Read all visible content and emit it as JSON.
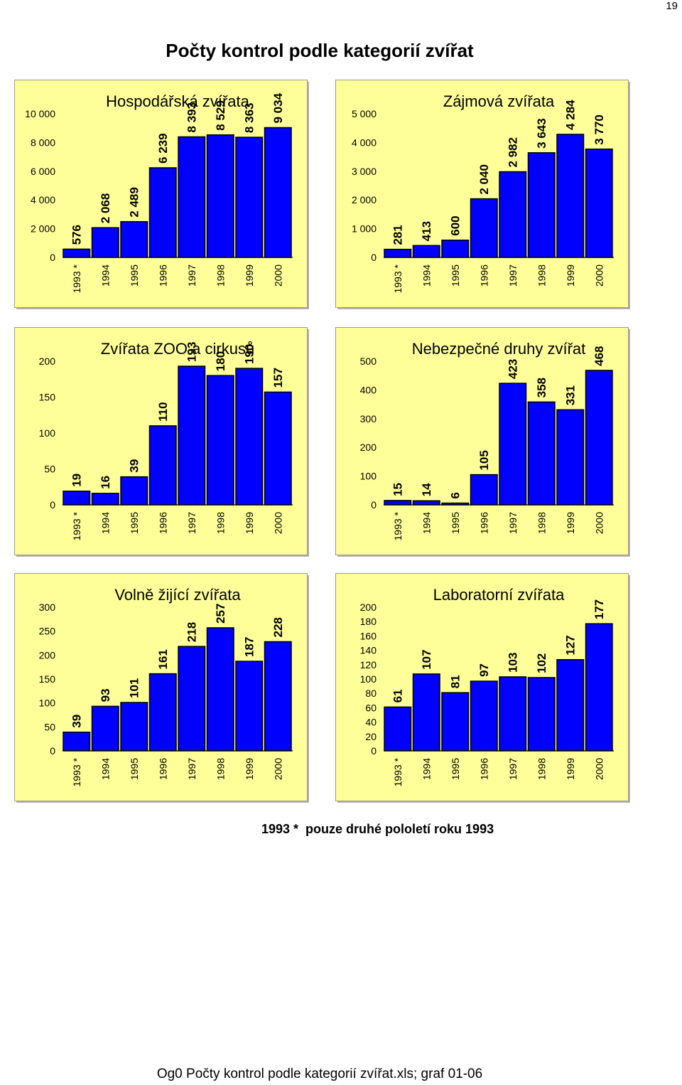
{
  "page": {
    "number": "19",
    "title": "Počty kontrol podle kategorií zvířat",
    "footnote": "1993 *  pouze druhé pololetí roku 1993",
    "footer": "Og0 Počty kontrol podle kategorií zvířat.xls; graf 01-06"
  },
  "colors": {
    "panel_bg": "#ffff99",
    "bar_fill": "#0000ff",
    "bar_stroke": "#000000"
  },
  "chart_data": [
    {
      "type": "bar",
      "title": "Hospodářská zvířata",
      "categories": [
        "1993 *",
        "1994",
        "1995",
        "1996",
        "1997",
        "1998",
        "1999",
        "2000"
      ],
      "values": [
        576,
        2068,
        2489,
        6239,
        8393,
        8529,
        8363,
        9034
      ],
      "value_labels": [
        "576",
        "2 068",
        "2 489",
        "6 239",
        "8 393",
        "8 529",
        "8 363",
        "9 034"
      ],
      "ylim": [
        0,
        10000
      ],
      "yticks": [
        0,
        2000,
        4000,
        6000,
        8000,
        10000
      ],
      "ytick_labels": [
        "0",
        "2 000",
        "4 000",
        "6 000",
        "8 000",
        "10 000"
      ],
      "grid": false
    },
    {
      "type": "bar",
      "title": "Zájmová zvířata",
      "categories": [
        "1993 *",
        "1994",
        "1995",
        "1996",
        "1997",
        "1998",
        "1999",
        "2000"
      ],
      "values": [
        281,
        413,
        600,
        2040,
        2982,
        3643,
        4284,
        3770
      ],
      "value_labels": [
        "281",
        "413",
        "600",
        "2 040",
        "2 982",
        "3 643",
        "4 284",
        "3 770"
      ],
      "ylim": [
        0,
        5000
      ],
      "yticks": [
        0,
        1000,
        2000,
        3000,
        4000,
        5000
      ],
      "ytick_labels": [
        "0",
        "1 000",
        "2 000",
        "3 000",
        "4 000",
        "5 000"
      ],
      "grid": false
    },
    {
      "type": "bar",
      "title": "Zvířata ZOO a cirkusů",
      "categories": [
        "1993 *",
        "1994",
        "1995",
        "1996",
        "1997",
        "1998",
        "1999",
        "2000"
      ],
      "values": [
        19,
        16,
        39,
        110,
        193,
        180,
        190,
        157
      ],
      "value_labels": [
        "19",
        "16",
        "39",
        "110",
        "193",
        "180",
        "190",
        "157"
      ],
      "ylim": [
        0,
        200
      ],
      "yticks": [
        0,
        50,
        100,
        150,
        200
      ],
      "ytick_labels": [
        "0",
        "50",
        "100",
        "150",
        "200"
      ],
      "grid": false
    },
    {
      "type": "bar",
      "title": "Nebezpečné druhy zvířat",
      "categories": [
        "1993 *",
        "1994",
        "1995",
        "1996",
        "1997",
        "1998",
        "1999",
        "2000"
      ],
      "values": [
        15,
        14,
        6,
        105,
        423,
        358,
        331,
        468
      ],
      "value_labels": [
        "15",
        "14",
        "6",
        "105",
        "423",
        "358",
        "331",
        "468"
      ],
      "ylim": [
        0,
        500
      ],
      "yticks": [
        0,
        100,
        200,
        300,
        400,
        500
      ],
      "ytick_labels": [
        "0",
        "100",
        "200",
        "300",
        "400",
        "500"
      ],
      "grid": false
    },
    {
      "type": "bar",
      "title": "Volně žijící zvířata",
      "categories": [
        "1993 *",
        "1994",
        "1995",
        "1996",
        "1997",
        "1998",
        "1999",
        "2000"
      ],
      "values": [
        39,
        93,
        101,
        161,
        218,
        257,
        187,
        228
      ],
      "value_labels": [
        "39",
        "93",
        "101",
        "161",
        "218",
        "257",
        "187",
        "228"
      ],
      "ylim": [
        0,
        300
      ],
      "yticks": [
        0,
        50,
        100,
        150,
        200,
        250,
        300
      ],
      "ytick_labels": [
        "0",
        "50",
        "100",
        "150",
        "200",
        "250",
        "300"
      ],
      "grid": false
    },
    {
      "type": "bar",
      "title": "Laboratorní zvířata",
      "categories": [
        "1993 *",
        "1994",
        "1995",
        "1996",
        "1997",
        "1998",
        "1999",
        "2000"
      ],
      "values": [
        61,
        107,
        81,
        97,
        103,
        102,
        127,
        177
      ],
      "value_labels": [
        "61",
        "107",
        "81",
        "97",
        "103",
        "102",
        "127",
        "177"
      ],
      "ylim": [
        0,
        200
      ],
      "yticks": [
        0,
        20,
        40,
        60,
        80,
        100,
        120,
        140,
        160,
        180,
        200
      ],
      "ytick_labels": [
        "0",
        "20",
        "40",
        "60",
        "80",
        "100",
        "120",
        "140",
        "160",
        "180",
        "200"
      ],
      "grid": false
    }
  ]
}
